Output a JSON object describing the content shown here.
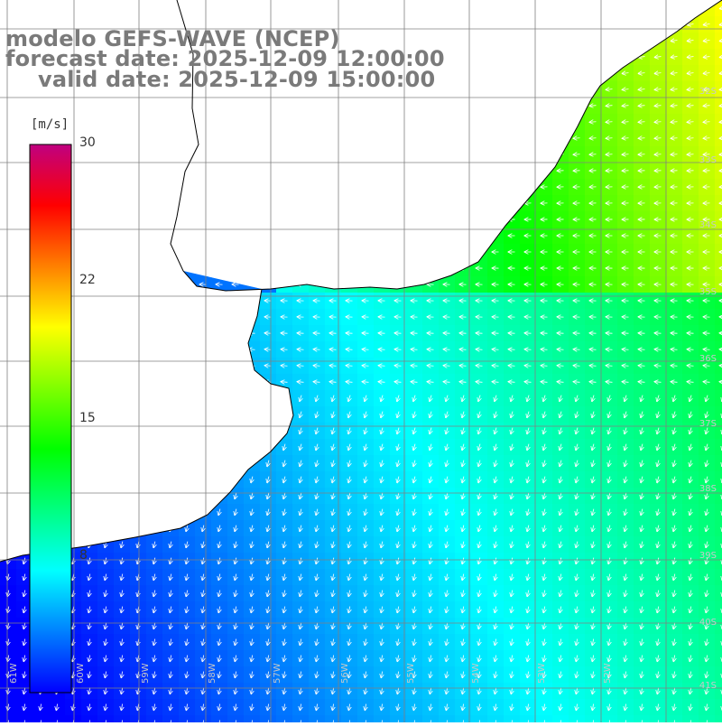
{
  "title": {
    "line1": "modelo GEFS-WAVE (NCEP)",
    "line2": "forecast date: 2025-12-09 12:00:00",
    "line3": "valid date: 2025-12-09 15:00:00"
  },
  "colorbar": {
    "unit": "[m/s]",
    "min": 0,
    "max": 30,
    "ticks": [
      {
        "value": 30,
        "label": "30"
      },
      {
        "value": 22.5,
        "label": "22"
      },
      {
        "value": 15,
        "label": "15"
      },
      {
        "value": 7.5,
        "label": "8"
      }
    ],
    "stops": [
      "#0000ff",
      "#0080ff",
      "#00ffff",
      "#00ff80",
      "#00ff00",
      "#80ff00",
      "#ffff00",
      "#ff8000",
      "#ff0000",
      "#c00080"
    ]
  },
  "map": {
    "lon_range": [
      -62,
      -51
    ],
    "lat_range": [
      -41.5,
      -31
    ],
    "lon_ticks": [
      "61W",
      "60W",
      "59W",
      "58W",
      "57W",
      "56W",
      "55W",
      "54W",
      "53W",
      "52W"
    ],
    "lat_ticks": [
      "32S",
      "33S",
      "34S",
      "35S",
      "36S",
      "37S",
      "38S",
      "39S",
      "40S",
      "41S"
    ],
    "land_color": "#ffffff",
    "grid_color": "#808080"
  }
}
